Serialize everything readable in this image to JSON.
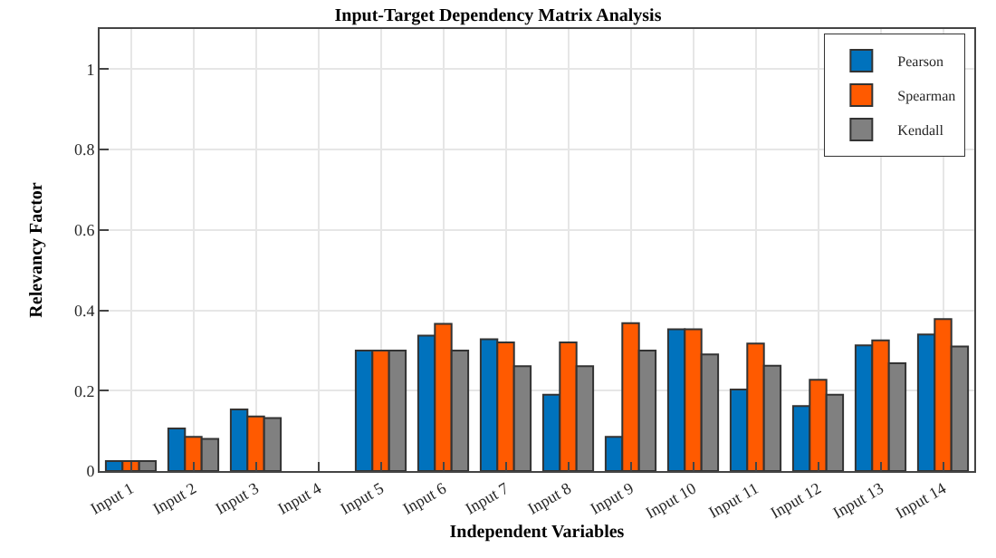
{
  "chart_data": {
    "type": "bar",
    "title": "Input-Target Dependency Matrix Analysis",
    "xlabel": "Independent Variables",
    "ylabel": "Relevancy Factor",
    "categories": [
      "Input 1",
      "Input 2",
      "Input 3",
      "Input 4",
      "Input 5",
      "Input 6",
      "Input 7",
      "Input 8",
      "Input 9",
      "Input 10",
      "Input 11",
      "Input 12",
      "Input 13",
      "Input 14"
    ],
    "series": [
      {
        "name": "Pearson",
        "color": "#0072bd",
        "values": [
          0.025,
          0.106,
          0.153,
          0,
          0.3,
          0.337,
          0.328,
          0.19,
          0.085,
          0.353,
          0.203,
          0.162,
          0.313,
          0.34
        ]
      },
      {
        "name": "Spearman",
        "color": "#ff5a00",
        "values": [
          0.025,
          0.085,
          0.136,
          0,
          0.3,
          0.366,
          0.32,
          0.32,
          0.368,
          0.353,
          0.317,
          0.227,
          0.325,
          0.378
        ]
      },
      {
        "name": "Kendall",
        "color": "#808080",
        "values": [
          0.025,
          0.08,
          0.132,
          0,
          0.3,
          0.3,
          0.261,
          0.261,
          0.3,
          0.29,
          0.262,
          0.19,
          0.268,
          0.31
        ]
      }
    ],
    "ylim": [
      0,
      1.1
    ],
    "yticks": [
      0,
      0.2,
      0.4,
      0.6,
      0.8,
      1
    ],
    "grid": true,
    "legend": "top right"
  }
}
